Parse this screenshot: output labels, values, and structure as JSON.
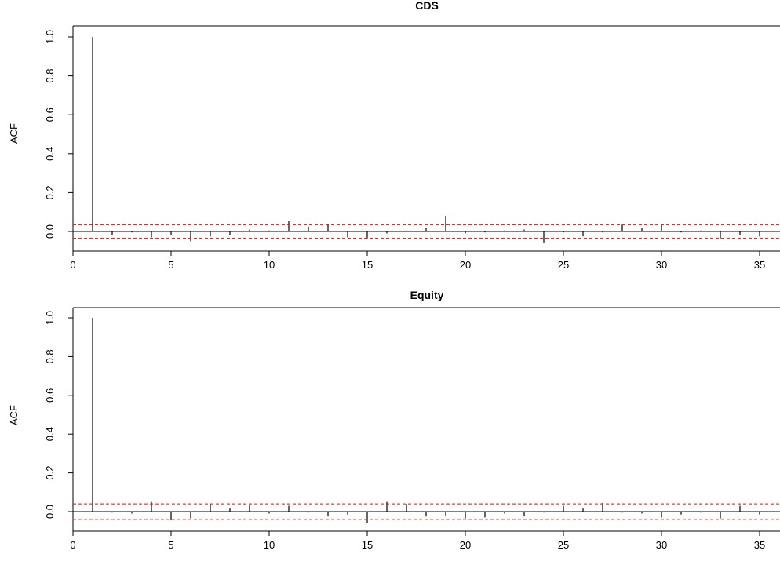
{
  "chart_data": [
    {
      "type": "bar",
      "title": "CDS",
      "ylabel": "ACF",
      "xlabel": "",
      "xlim": [
        -0.5,
        36
      ],
      "ylim": [
        -0.1,
        1.0
      ],
      "x_ticks": [
        0,
        5,
        10,
        15,
        20,
        25,
        30,
        35
      ],
      "y_ticks": [
        0.0,
        0.2,
        0.4,
        0.6,
        0.8,
        1.0
      ],
      "x_tick_labels": [
        "0",
        "5",
        "10",
        "15",
        "20",
        "25",
        "30",
        "35"
      ],
      "y_tick_labels": [
        "0.0",
        "0.2",
        "0.4",
        "0.6",
        "0.8",
        "1.0"
      ],
      "conf_limit": 0.035,
      "conf_color": "#ff0000",
      "bar_color": "#000000",
      "grid": false,
      "lags": [
        1,
        2,
        3,
        4,
        5,
        6,
        7,
        8,
        9,
        10,
        11,
        12,
        13,
        14,
        15,
        16,
        17,
        18,
        19,
        20,
        21,
        22,
        23,
        24,
        25,
        26,
        27,
        28,
        29,
        30,
        31,
        32,
        33,
        34,
        35
      ],
      "values": [
        1.0,
        -0.02,
        -0.005,
        -0.03,
        -0.02,
        -0.05,
        -0.025,
        -0.02,
        0.01,
        0.005,
        0.055,
        0.025,
        0.035,
        -0.03,
        -0.035,
        -0.01,
        0.005,
        0.02,
        0.08,
        -0.01,
        -0.005,
        0.005,
        0.01,
        -0.06,
        -0.005,
        -0.025,
        -0.005,
        0.035,
        0.02,
        0.035,
        -0.005,
        0.005,
        -0.035,
        -0.02,
        -0.025
      ]
    },
    {
      "type": "bar",
      "title": "Equity",
      "ylabel": "ACF",
      "xlabel": "",
      "xlim": [
        -0.5,
        36
      ],
      "ylim": [
        -0.1,
        1.0
      ],
      "x_ticks": [
        0,
        5,
        10,
        15,
        20,
        25,
        30,
        35
      ],
      "y_ticks": [
        0.0,
        0.2,
        0.4,
        0.6,
        0.8,
        1.0
      ],
      "x_tick_labels": [
        "0",
        "5",
        "10",
        "15",
        "20",
        "25",
        "30",
        "35"
      ],
      "y_tick_labels": [
        "0.0",
        "0.2",
        "0.4",
        "0.6",
        "0.8",
        "1.0"
      ],
      "conf_limit": 0.04,
      "conf_color": "#ff0000",
      "bar_color": "#000000",
      "grid": false,
      "lags": [
        1,
        2,
        3,
        4,
        5,
        6,
        7,
        8,
        9,
        10,
        11,
        12,
        13,
        14,
        15,
        16,
        17,
        18,
        19,
        20,
        21,
        22,
        23,
        24,
        25,
        26,
        27,
        28,
        29,
        30,
        31,
        32,
        33,
        34,
        35
      ],
      "values": [
        1.0,
        -0.005,
        -0.01,
        0.05,
        -0.045,
        -0.035,
        0.04,
        0.02,
        0.035,
        -0.01,
        0.03,
        -0.005,
        -0.025,
        -0.015,
        -0.06,
        0.05,
        0.04,
        -0.025,
        -0.02,
        -0.035,
        -0.03,
        -0.01,
        -0.025,
        -0.005,
        0.03,
        0.02,
        0.045,
        -0.005,
        -0.01,
        -0.03,
        -0.015,
        -0.005,
        -0.035,
        0.03,
        -0.015
      ]
    }
  ]
}
